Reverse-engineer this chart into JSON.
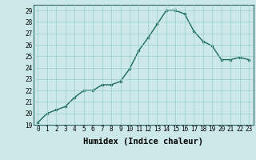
{
  "x": [
    0,
    1,
    2,
    3,
    4,
    5,
    6,
    7,
    8,
    9,
    10,
    11,
    12,
    13,
    14,
    15,
    16,
    17,
    18,
    19,
    20,
    21,
    22,
    23
  ],
  "y": [
    19.2,
    20.0,
    20.3,
    20.6,
    21.4,
    22.0,
    22.0,
    22.5,
    22.5,
    22.8,
    23.9,
    25.5,
    26.6,
    27.8,
    29.0,
    29.0,
    28.7,
    27.2,
    26.3,
    25.9,
    24.7,
    24.7,
    24.9,
    24.7
  ],
  "line_color": "#1a6b5a",
  "marker_color": "#1a6b5a",
  "bg_color": "#cce8e8",
  "grid_color": "#99cccc",
  "xlabel": "Humidex (Indice chaleur)",
  "ylabel": "",
  "xlim": [
    -0.5,
    23.5
  ],
  "ylim": [
    19,
    29.5
  ],
  "yticks": [
    19,
    20,
    21,
    22,
    23,
    24,
    25,
    26,
    27,
    28,
    29
  ],
  "xticks": [
    0,
    1,
    2,
    3,
    4,
    5,
    6,
    7,
    8,
    9,
    10,
    11,
    12,
    13,
    14,
    15,
    16,
    17,
    18,
    19,
    20,
    21,
    22,
    23
  ],
  "xlabel_fontsize": 7.5,
  "tick_fontsize": 5.5,
  "linewidth": 1.0,
  "markersize": 2.0
}
